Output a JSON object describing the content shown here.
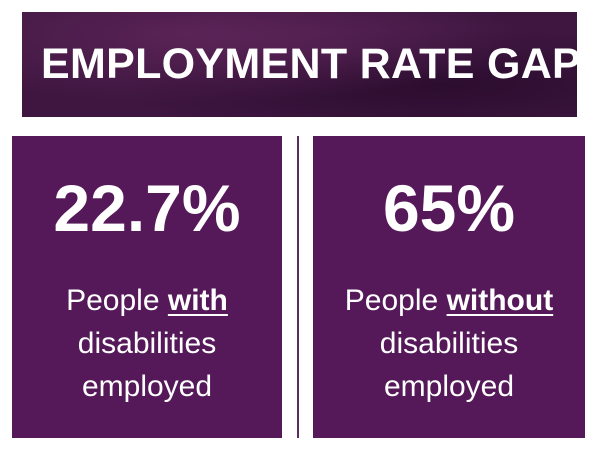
{
  "header": {
    "title": "EMPLOYMENT RATE GAP"
  },
  "cards": [
    {
      "stat": "22.7%",
      "desc_prefix": "People",
      "desc_emphasis": "with",
      "desc_line2": "disabilities",
      "desc_line3": "employed"
    },
    {
      "stat": "65%",
      "desc_prefix": "People",
      "desc_emphasis": "without",
      "desc_line2": "disabilities",
      "desc_line3": "employed"
    }
  ],
  "colors": {
    "banner_bg": "#3e1640",
    "card_bg": "#55195a",
    "text": "#ffffff",
    "divider": "#5e2a62"
  }
}
